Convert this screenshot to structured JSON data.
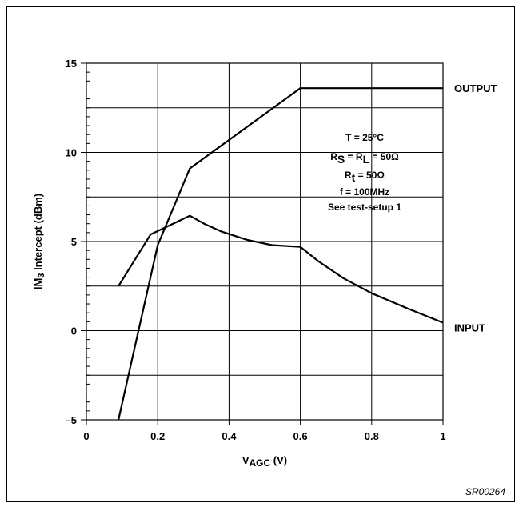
{
  "chart_data": {
    "type": "line",
    "xlabel": {
      "main": "V",
      "sub": "AGC",
      "unit": " (V)"
    },
    "ylabel": {
      "main": "IM",
      "sub": "3",
      "rest": "  Intercept (dBm)"
    },
    "xlim": [
      0,
      1
    ],
    "ylim": [
      -5,
      15
    ],
    "x_ticks": [
      0,
      0.2,
      0.4,
      0.6,
      0.8,
      1
    ],
    "x_tick_labels": [
      "0",
      "0.2",
      "0.4",
      "0.6",
      "0.8",
      "1"
    ],
    "y_ticks": [
      -5,
      0,
      5,
      10,
      15
    ],
    "y_tick_labels": [
      "–5",
      "0",
      "5",
      "10",
      "15"
    ],
    "grid_x": [
      0.2,
      0.4,
      0.6,
      0.8
    ],
    "grid_y": [
      -2.5,
      0,
      2.5,
      5,
      7.5,
      10,
      12.5
    ],
    "minor_y_step": 0.5,
    "grid": true,
    "series": [
      {
        "name": "OUTPUT",
        "points": [
          [
            0.09,
            -5
          ],
          [
            0.2,
            4.8
          ],
          [
            0.29,
            9.1
          ],
          [
            0.6,
            13.6
          ],
          [
            1.0,
            13.6
          ]
        ]
      },
      {
        "name": "INPUT",
        "points": [
          [
            0.09,
            2.5
          ],
          [
            0.18,
            5.4
          ],
          [
            0.29,
            6.45
          ],
          [
            0.33,
            6.0
          ],
          [
            0.38,
            5.55
          ],
          [
            0.45,
            5.1
          ],
          [
            0.52,
            4.8
          ],
          [
            0.6,
            4.7
          ],
          [
            0.65,
            3.9
          ],
          [
            0.72,
            2.95
          ],
          [
            0.8,
            2.1
          ],
          [
            0.9,
            1.25
          ],
          [
            1.0,
            0.45
          ]
        ]
      }
    ],
    "conditions": [
      {
        "main": "T = 25°C"
      },
      {
        "parts": [
          "R",
          "S",
          " = R",
          "L",
          " = 50Ω"
        ]
      },
      {
        "parts": [
          "R",
          "t",
          " = 50Ω"
        ]
      },
      {
        "main": "f = 100MHz"
      },
      {
        "main": "See test-setup 1"
      }
    ],
    "figure_ref": "SR00264"
  }
}
